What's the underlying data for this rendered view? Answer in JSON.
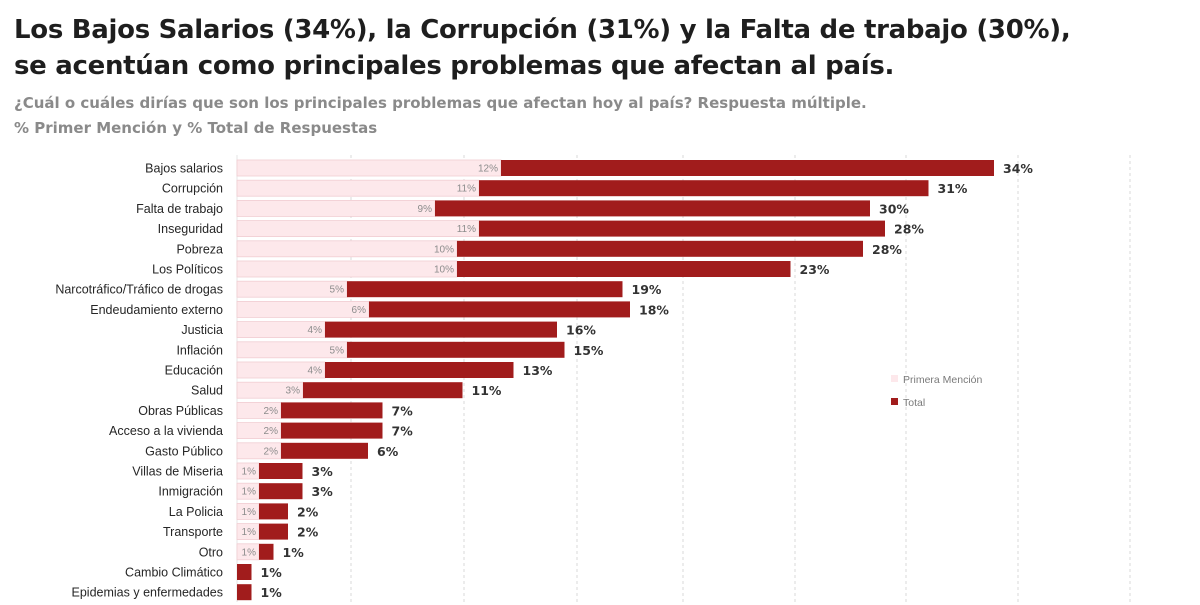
{
  "header": {
    "title_line1": "Los Bajos Salarios (34%), la Corrupción (31%) y la Falta de trabajo (30%),",
    "title_line2": "se acentúan como principales problemas que afectan al país.",
    "subtitle_line1": "¿Cuál o cuáles dirías que son los principales problemas que afectan hoy al país? Respuesta múltiple.",
    "subtitle_line2": "% Primer Mención y % Total de Respuestas"
  },
  "colors": {
    "primera": "#fde8eb",
    "primera_border": "#f1cdd2",
    "total": "#a11c1c",
    "grid": "#d9d9d9"
  },
  "chart_data": {
    "type": "bar",
    "orientation": "horizontal",
    "stacked": true,
    "title": "Los Bajos Salarios (34%), la Corrupción (31%) y la Falta de trabajo (30%), se acentúan como principales problemas que afectan al país.",
    "xlabel": "",
    "ylabel": "",
    "grid": true,
    "legend": {
      "placement": "right",
      "entries": [
        "Primera Mención",
        "Total"
      ]
    },
    "categories": [
      "Bajos salarios",
      "Corrupción",
      "Falta de trabajo",
      "Inseguridad",
      "Pobreza",
      "Los Políticos",
      "Narcotráfico/Tráfico de drogas",
      "Endeudamiento externo",
      "Justicia",
      "Inflación",
      "Educación",
      "Salud",
      "Obras Públicas",
      "Acceso a la vivienda",
      "Gasto Público",
      "Villas de Miseria",
      "Inmigración",
      "La Policia",
      "Transporte",
      "Otro",
      "Cambio Climático",
      "Epidemias y enfermedades"
    ],
    "series": [
      {
        "name": "Primera Mención",
        "values": [
          12,
          11,
          9,
          11,
          10,
          10,
          5,
          6,
          4,
          5,
          4,
          3,
          2,
          2,
          2,
          1,
          1,
          1,
          1,
          1,
          0,
          0
        ]
      },
      {
        "name": "Total",
        "values": [
          34,
          31,
          30,
          28,
          28,
          23,
          19,
          18,
          16,
          15,
          13,
          11,
          7,
          7,
          6,
          3,
          3,
          2,
          2,
          1,
          1,
          1
        ]
      }
    ],
    "unit": "%"
  }
}
